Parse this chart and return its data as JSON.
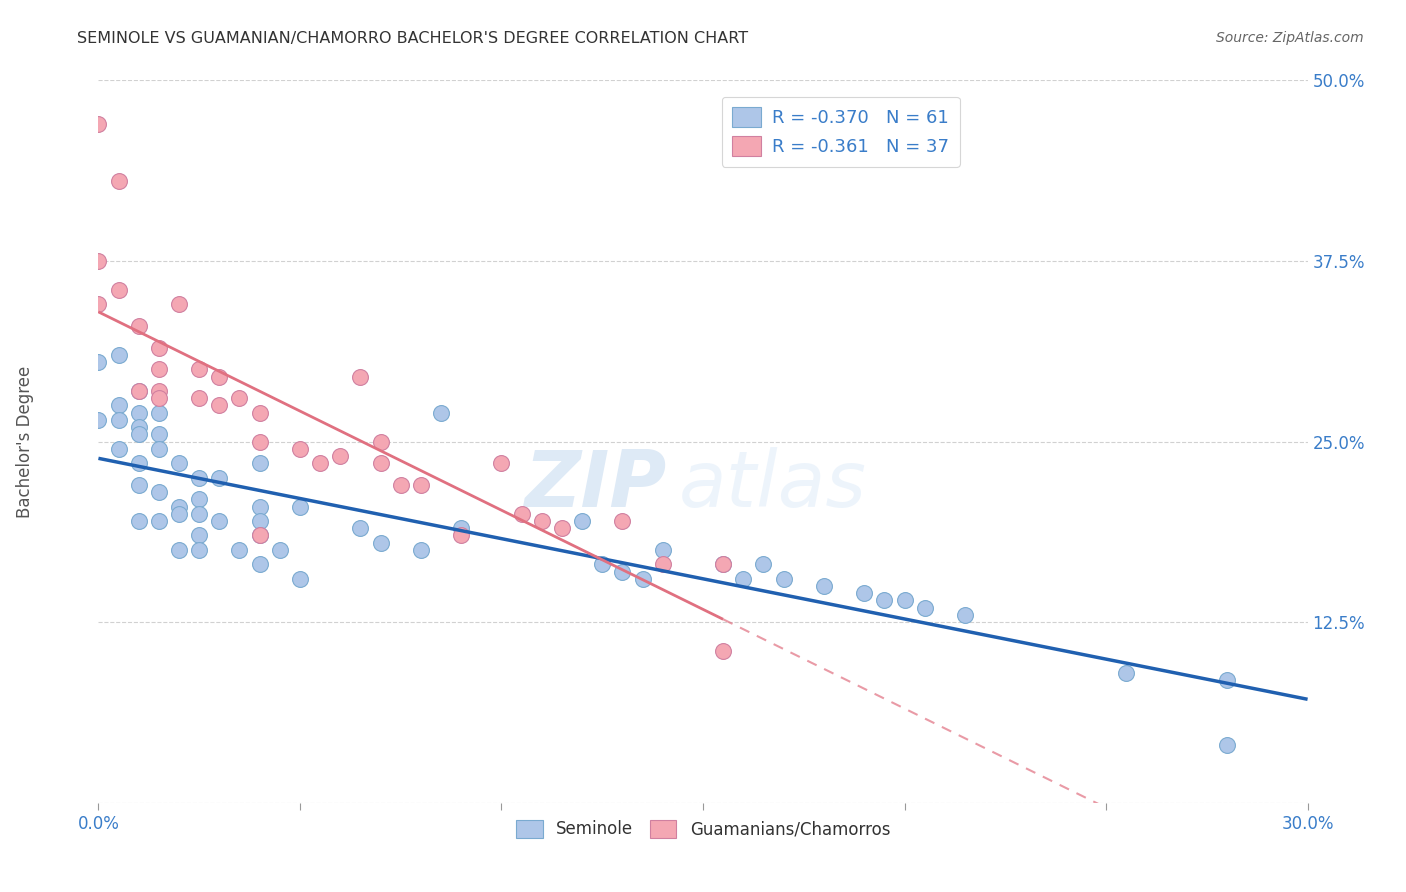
{
  "title": "SEMINOLE VS GUAMANIAN/CHAMORRO BACHELOR'S DEGREE CORRELATION CHART",
  "source": "Source: ZipAtlas.com",
  "xlabel": "",
  "ylabel": "Bachelor's Degree",
  "xlim": [
    0.0,
    0.3
  ],
  "ylim": [
    0.0,
    0.5
  ],
  "xticks": [
    0.0,
    0.05,
    0.1,
    0.15,
    0.2,
    0.25,
    0.3
  ],
  "xticklabels": [
    "0.0%",
    "",
    "",
    "",
    "",
    "",
    "30.0%"
  ],
  "yticks": [
    0.0,
    0.125,
    0.25,
    0.375,
    0.5
  ],
  "yticklabels": [
    "",
    "12.5%",
    "25.0%",
    "37.5%",
    "50.0%"
  ],
  "legend_blue_R": "R = -0.370",
  "legend_blue_N": "N = 61",
  "legend_pink_R": "R = -0.361",
  "legend_pink_N": "N = 37",
  "blue_color": "#AEC6E8",
  "pink_color": "#F4A7B3",
  "blue_line_color": "#2060B0",
  "pink_line_color": "#E07080",
  "watermark_zip": "ZIP",
  "watermark_atlas": "atlas",
  "seminole_label": "Seminole",
  "guamanian_label": "Guamanians/Chamorros",
  "blue_scatter_x": [
    0.0,
    0.0,
    0.005,
    0.005,
    0.005,
    0.005,
    0.01,
    0.01,
    0.01,
    0.01,
    0.01,
    0.01,
    0.01,
    0.015,
    0.015,
    0.015,
    0.015,
    0.015,
    0.02,
    0.02,
    0.02,
    0.02,
    0.025,
    0.025,
    0.025,
    0.025,
    0.025,
    0.03,
    0.03,
    0.035,
    0.04,
    0.04,
    0.04,
    0.04,
    0.04,
    0.045,
    0.05,
    0.05,
    0.065,
    0.07,
    0.08,
    0.085,
    0.09,
    0.12,
    0.125,
    0.13,
    0.135,
    0.14,
    0.155,
    0.16,
    0.165,
    0.17,
    0.18,
    0.19,
    0.195,
    0.2,
    0.205,
    0.215,
    0.255,
    0.28,
    0.28
  ],
  "blue_scatter_y": [
    0.305,
    0.265,
    0.31,
    0.275,
    0.265,
    0.245,
    0.285,
    0.27,
    0.26,
    0.255,
    0.235,
    0.22,
    0.195,
    0.27,
    0.255,
    0.245,
    0.215,
    0.195,
    0.235,
    0.205,
    0.2,
    0.175,
    0.225,
    0.21,
    0.2,
    0.185,
    0.175,
    0.225,
    0.195,
    0.175,
    0.235,
    0.205,
    0.195,
    0.185,
    0.165,
    0.175,
    0.205,
    0.155,
    0.19,
    0.18,
    0.175,
    0.27,
    0.19,
    0.195,
    0.165,
    0.16,
    0.155,
    0.175,
    0.165,
    0.155,
    0.165,
    0.155,
    0.15,
    0.145,
    0.14,
    0.14,
    0.135,
    0.13,
    0.09,
    0.085,
    0.04
  ],
  "pink_scatter_x": [
    0.0,
    0.0,
    0.0,
    0.005,
    0.005,
    0.01,
    0.01,
    0.015,
    0.015,
    0.015,
    0.015,
    0.02,
    0.025,
    0.025,
    0.03,
    0.03,
    0.035,
    0.04,
    0.04,
    0.04,
    0.05,
    0.055,
    0.06,
    0.065,
    0.07,
    0.07,
    0.075,
    0.08,
    0.09,
    0.1,
    0.105,
    0.11,
    0.115,
    0.13,
    0.14,
    0.155,
    0.155
  ],
  "pink_scatter_y": [
    0.47,
    0.375,
    0.345,
    0.43,
    0.355,
    0.33,
    0.285,
    0.315,
    0.3,
    0.285,
    0.28,
    0.345,
    0.3,
    0.28,
    0.295,
    0.275,
    0.28,
    0.27,
    0.25,
    0.185,
    0.245,
    0.235,
    0.24,
    0.295,
    0.235,
    0.25,
    0.22,
    0.22,
    0.185,
    0.235,
    0.2,
    0.195,
    0.19,
    0.195,
    0.165,
    0.105,
    0.165
  ]
}
